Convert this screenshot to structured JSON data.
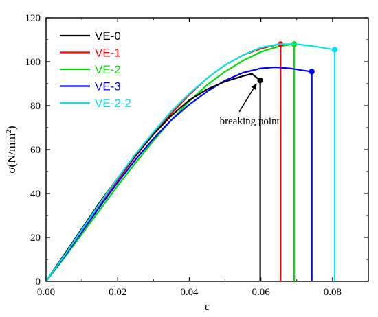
{
  "chart_data": {
    "type": "line",
    "xlabel": "ε",
    "ylabel_main": "σ(N/mm",
    "ylabel_sup": "2",
    "ylabel_close": ")",
    "xlim": [
      0,
      0.09
    ],
    "ylim": [
      0,
      120
    ],
    "xticks": [
      0.0,
      0.02,
      0.04,
      0.06,
      0.08
    ],
    "xtick_labels": [
      "0.00",
      "0.02",
      "0.04",
      "0.06",
      "0.08"
    ],
    "yticks": [
      0,
      20,
      40,
      60,
      80,
      100,
      120
    ],
    "ytick_labels": [
      "0",
      "20",
      "40",
      "60",
      "80",
      "100",
      "120"
    ],
    "grid": false,
    "legend_position": "top-left",
    "annotation": {
      "text": "breaking point",
      "target_x": 0.0598,
      "target_y": 91.5,
      "text_x": 0.053,
      "text_y": 76
    },
    "series": [
      {
        "name": "VE-0",
        "color": "#000000",
        "x": [
          0,
          0.005,
          0.01,
          0.015,
          0.02,
          0.025,
          0.03,
          0.035,
          0.04,
          0.045,
          0.05,
          0.055,
          0.0575,
          0.0598
        ],
        "y": [
          0,
          12,
          24,
          36,
          47,
          57.5,
          67,
          75.5,
          82.5,
          87.5,
          91,
          93.5,
          94.5,
          91.5
        ],
        "break_x": 0.0598,
        "break_y": 91.5
      },
      {
        "name": "VE-1",
        "color": "#ff0000",
        "x": [
          0,
          0.005,
          0.01,
          0.015,
          0.02,
          0.025,
          0.03,
          0.035,
          0.04,
          0.045,
          0.05,
          0.055,
          0.06,
          0.065
        ],
        "y": [
          0,
          11.5,
          23,
          34.5,
          46,
          57,
          67,
          76.5,
          85,
          92.5,
          98.5,
          103,
          106,
          108
        ],
        "break_x": 0.0655,
        "break_y": 108
      },
      {
        "name": "VE-2",
        "color": "#00dd00",
        "x": [
          0,
          0.005,
          0.01,
          0.015,
          0.02,
          0.025,
          0.03,
          0.035,
          0.04,
          0.045,
          0.05,
          0.055,
          0.06,
          0.065,
          0.069
        ],
        "y": [
          0,
          10.5,
          21.5,
          32.5,
          43.5,
          54,
          64,
          73.5,
          82,
          89.5,
          95.5,
          100.5,
          104.5,
          107,
          108
        ],
        "break_x": 0.0693,
        "break_y": 108
      },
      {
        "name": "VE-3",
        "color": "#0000ff",
        "x": [
          0,
          0.005,
          0.01,
          0.015,
          0.02,
          0.025,
          0.03,
          0.035,
          0.04,
          0.045,
          0.05,
          0.055,
          0.06,
          0.064,
          0.068,
          0.074
        ],
        "y": [
          0,
          11,
          22.5,
          34,
          45,
          55.5,
          65,
          73.5,
          80.5,
          86.5,
          91.5,
          95,
          97,
          97.5,
          97,
          95.5
        ],
        "break_x": 0.0742,
        "break_y": 95.5
      },
      {
        "name": "VE-2-2",
        "color": "#00e5ee",
        "x": [
          0,
          0.005,
          0.01,
          0.015,
          0.02,
          0.025,
          0.03,
          0.035,
          0.04,
          0.045,
          0.05,
          0.055,
          0.06,
          0.065,
          0.07,
          0.075,
          0.0805
        ],
        "y": [
          0,
          11.5,
          23.5,
          35.5,
          47,
          58,
          68,
          77.5,
          85.5,
          92.5,
          98.5,
          103,
          106.5,
          108,
          108,
          107,
          105.5
        ],
        "break_x": 0.0806,
        "break_y": 105.5
      }
    ]
  }
}
